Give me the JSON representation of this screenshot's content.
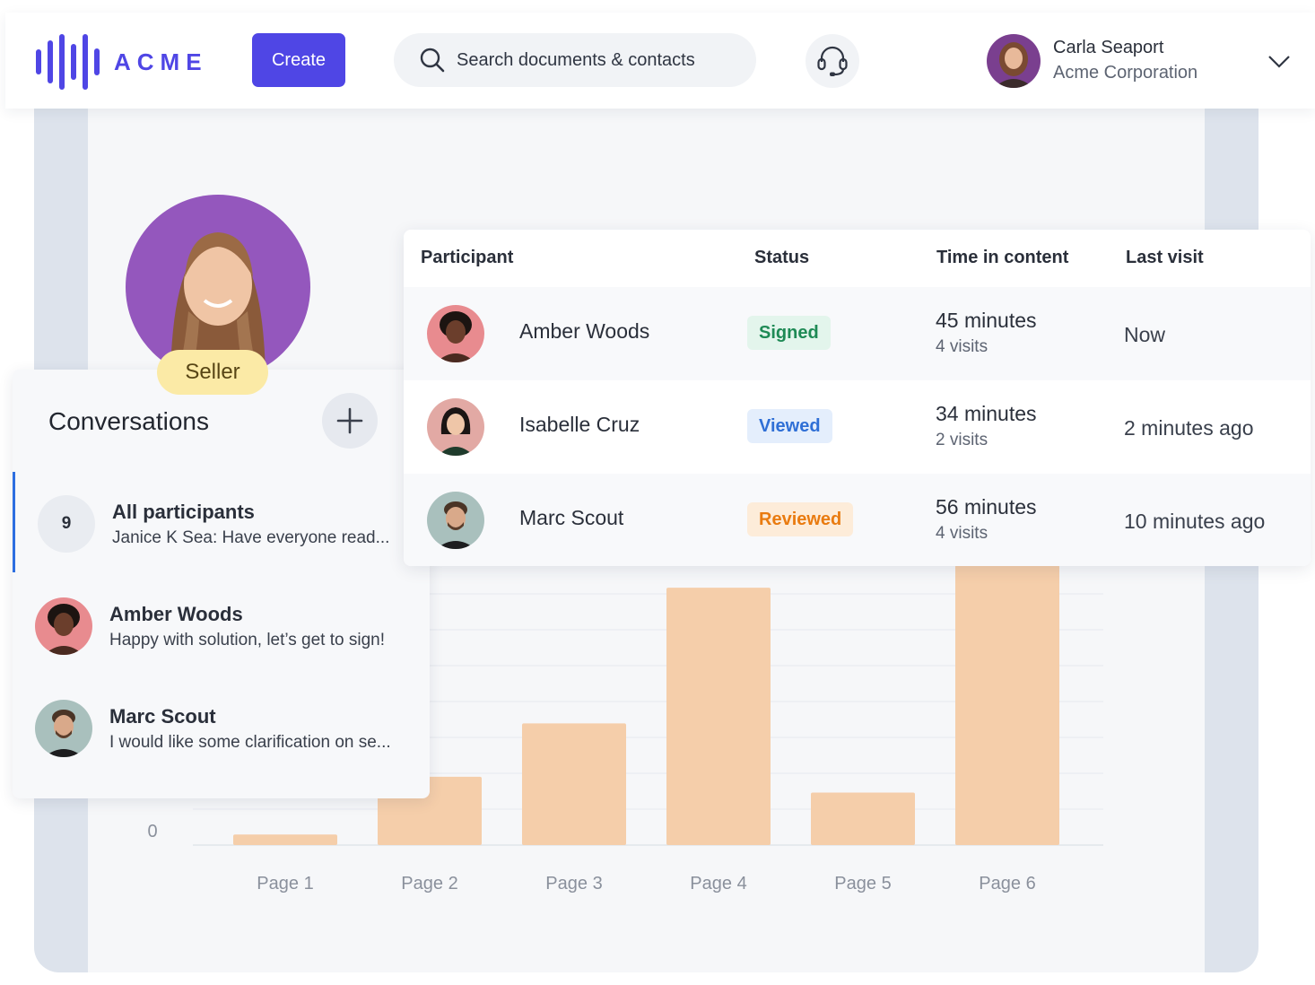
{
  "colors": {
    "brand": "#4f46e5",
    "bar": "#f5ceaa",
    "signed_bg": "#e3f5ec",
    "signed_text": "#1e8a55",
    "viewed_bg": "#e4eefc",
    "viewed_text": "#2f6fd6",
    "reviewed_bg": "#fdecd9",
    "reviewed_text": "#e97b10",
    "seller_badge": "#fbeaa6"
  },
  "header": {
    "logo_text": "ACME",
    "create_label": "Create",
    "search_placeholder": "Search documents & contacts",
    "support_icon": "headset-icon",
    "user": {
      "name": "Carla Seaport",
      "org": "Acme Corporation"
    }
  },
  "seller": {
    "badge": "Seller"
  },
  "conversations": {
    "title": "Conversations",
    "items": [
      {
        "count": "9",
        "name": "All participants",
        "message": "Janice K Sea: Have everyone read...",
        "active": true
      },
      {
        "name": "Amber Woods",
        "message": "Happy with solution, let’s get to sign!"
      },
      {
        "name": "Marc Scout",
        "message": "I would like some clarification on se..."
      }
    ]
  },
  "table": {
    "headers": {
      "participant": "Participant",
      "status": "Status",
      "time": "Time in content",
      "last": "Last visit"
    },
    "rows": [
      {
        "name": "Amber Woods",
        "status": "Signed",
        "time": "45 minutes",
        "visits": "4 visits",
        "last": "Now"
      },
      {
        "name": "Isabelle Cruz",
        "status": "Viewed",
        "time": "34 minutes",
        "visits": "2 visits",
        "last": "2 minutes ago"
      },
      {
        "name": "Marc Scout",
        "status": "Reviewed",
        "time": "56 minutes",
        "visits": "4 visits",
        "last": "10 minutes ago"
      }
    ]
  },
  "chart_data": {
    "type": "bar",
    "categories": [
      "Page 1",
      "Page 2",
      "Page 3",
      "Page 4",
      "Page 5",
      "Page 6"
    ],
    "values": [
      12,
      78,
      139,
      294,
      60,
      320
    ],
    "y_tick_labels": [
      "0"
    ],
    "ylim": [
      0,
      330
    ],
    "grid": true
  }
}
